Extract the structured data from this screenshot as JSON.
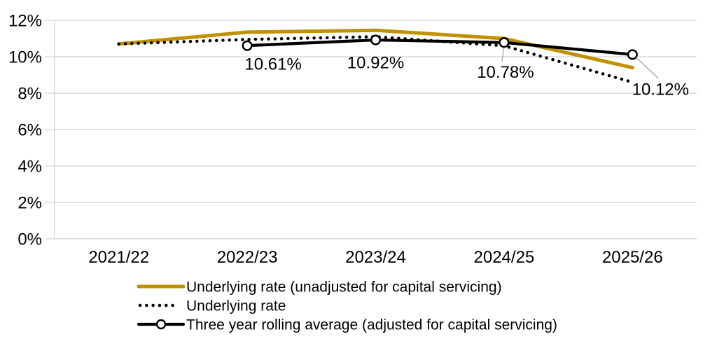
{
  "chart_data": {
    "type": "line",
    "title": "",
    "xlabel": "",
    "ylabel": "",
    "categories": [
      "2021/22",
      "2022/23",
      "2023/24",
      "2024/25",
      "2025/26"
    ],
    "series": [
      {
        "name": "Underlying rate (unadjusted for capital servicing)",
        "color": "#BF9000",
        "line_style": "solid",
        "marker": "none",
        "values": [
          10.7,
          11.35,
          11.45,
          11.0,
          9.4
        ]
      },
      {
        "name": "Underlying rate",
        "color": "#000000",
        "line_style": "dotted",
        "marker": "none",
        "values": [
          10.7,
          10.95,
          11.1,
          10.6,
          8.6
        ]
      },
      {
        "name": "Three year rolling average (adjusted for capital servicing)",
        "color": "#000000",
        "line_style": "solid",
        "marker": "circle",
        "values": [
          null,
          10.61,
          10.92,
          10.78,
          10.12
        ]
      }
    ],
    "data_labels": [
      {
        "text": "10.61%",
        "series_index": 2,
        "category_index": 1,
        "leader_line": false
      },
      {
        "text": "10.92%",
        "series_index": 2,
        "category_index": 2,
        "leader_line": false
      },
      {
        "text": "10.78%",
        "series_index": 2,
        "category_index": 3,
        "leader_line": true
      },
      {
        "text": "10.12%",
        "series_index": 2,
        "category_index": 4,
        "leader_line": true
      }
    ],
    "ylim": [
      0,
      12
    ],
    "ytick_step": 2,
    "ytick_labels": [
      "0%",
      "2%",
      "4%",
      "6%",
      "8%",
      "10%",
      "12%"
    ],
    "grid": true,
    "legend_position": "bottom-left"
  },
  "colors": {
    "gridline": "#D9D9D9",
    "axis_line": "#D9D9D9",
    "leader_line": "#A6A6A6",
    "marker_fill": "#FFFFFF",
    "text": "#000000",
    "background": "#FFFFFF"
  }
}
